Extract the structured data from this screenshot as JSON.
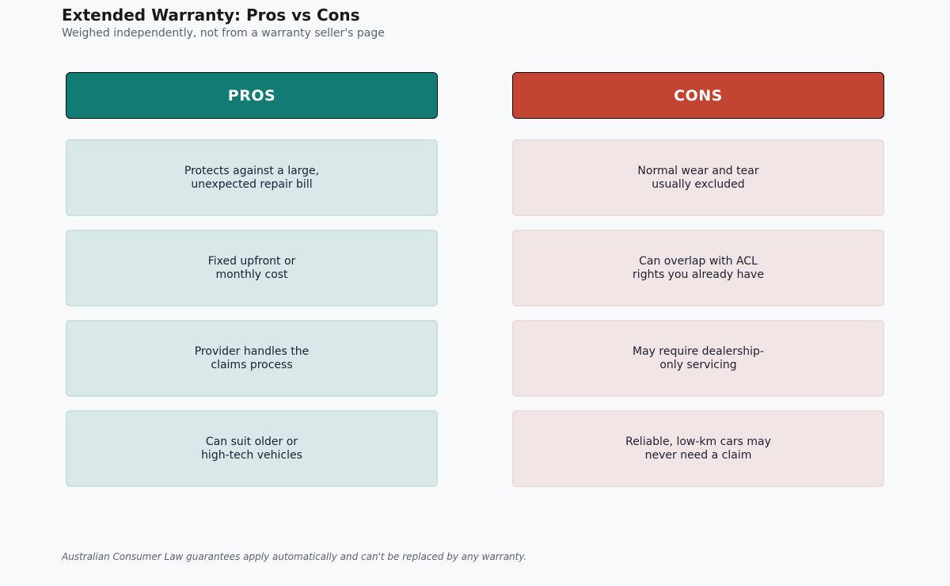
{
  "header": {
    "title": "Extended Warranty: Pros vs Cons",
    "subtitle": "Weighed independently, not from a warranty seller's page"
  },
  "pros": {
    "label": "PROS",
    "color": "#117b74",
    "items": [
      "Protects against a large,\nunexpected repair bill",
      "Fixed upfront or\nmonthly cost",
      "Provider handles the\nclaims process",
      "Can suit older or\nhigh-tech vehicles"
    ]
  },
  "cons": {
    "label": "CONS",
    "color": "#c24431",
    "items": [
      "Normal wear and tear\nusually excluded",
      "Can overlap with ACL\nrights you already have",
      "May require dealership-\nonly servicing",
      "Reliable, low-km cars may\nnever need a claim"
    ]
  },
  "footnote": "Australian Consumer Law guarantees apply automatically and can't be replaced by any warranty."
}
